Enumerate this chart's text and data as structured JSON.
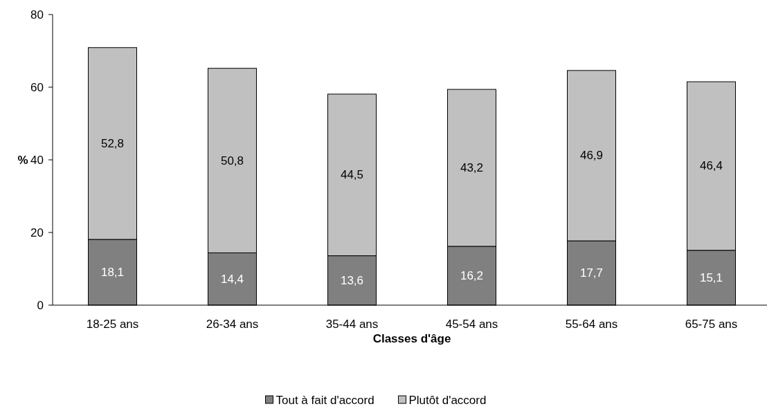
{
  "chart_data": {
    "type": "bar",
    "stacked": true,
    "xlabel": "Classes d'âge",
    "ylabel": "%",
    "categories": [
      "18-25 ans",
      "26-34 ans",
      "35-44 ans",
      "45-54 ans",
      "55-64 ans",
      "65-75 ans"
    ],
    "series": [
      {
        "name": "Tout à fait d'accord",
        "color": "#808080",
        "values": [
          18.1,
          14.4,
          13.6,
          16.2,
          17.7,
          15.1
        ],
        "value_labels": [
          "18,1",
          "14,4",
          "13,6",
          "16,2",
          "17,7",
          "15,1"
        ]
      },
      {
        "name": "Plutôt d'accord",
        "color": "#c0c0c0",
        "values": [
          52.8,
          50.8,
          44.5,
          43.2,
          46.9,
          46.4
        ],
        "value_labels": [
          "52,8",
          "50,8",
          "44,5",
          "43,2",
          "46,9",
          "46,4"
        ]
      }
    ],
    "ylim": [
      0,
      80
    ],
    "yticks": [
      0,
      20,
      40,
      60,
      80
    ],
    "legend": "bottom",
    "grid": false
  }
}
